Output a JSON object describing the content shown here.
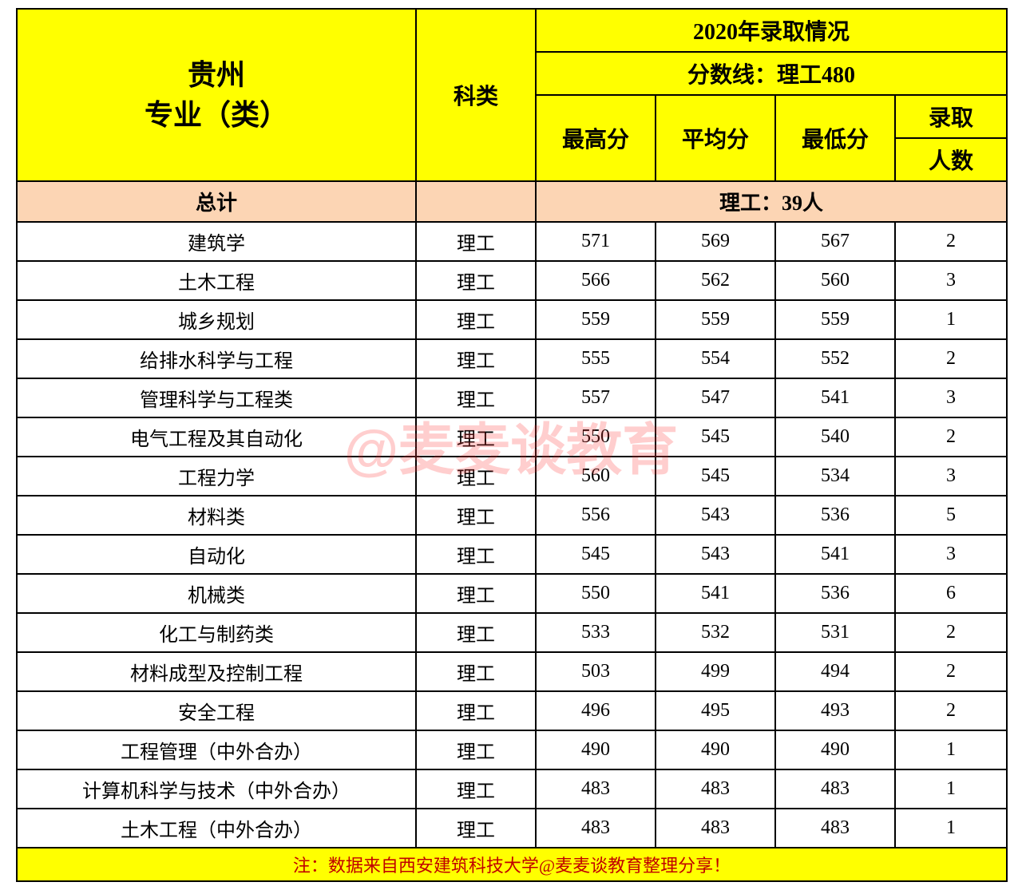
{
  "header": {
    "province_major": "贵州\n专业（类）",
    "category": "科类",
    "year_title": "2020年录取情况",
    "score_line": "分数线：理工480",
    "max": "最高分",
    "avg": "平均分",
    "min": "最低分",
    "count_top": "录取",
    "count_bot": "人数"
  },
  "total": {
    "label": "总计",
    "summary": "理工：39人"
  },
  "rows": [
    {
      "major": "建筑学",
      "cat": "理工",
      "max": "571",
      "avg": "569",
      "min": "567",
      "n": "2"
    },
    {
      "major": "土木工程",
      "cat": "理工",
      "max": "566",
      "avg": "562",
      "min": "560",
      "n": "3"
    },
    {
      "major": "城乡规划",
      "cat": "理工",
      "max": "559",
      "avg": "559",
      "min": "559",
      "n": "1"
    },
    {
      "major": "给排水科学与工程",
      "cat": "理工",
      "max": "555",
      "avg": "554",
      "min": "552",
      "n": "2"
    },
    {
      "major": "管理科学与工程类",
      "cat": "理工",
      "max": "557",
      "avg": "547",
      "min": "541",
      "n": "3"
    },
    {
      "major": "电气工程及其自动化",
      "cat": "理工",
      "max": "550",
      "avg": "545",
      "min": "540",
      "n": "2"
    },
    {
      "major": "工程力学",
      "cat": "理工",
      "max": "560",
      "avg": "545",
      "min": "534",
      "n": "3"
    },
    {
      "major": "材料类",
      "cat": "理工",
      "max": "556",
      "avg": "543",
      "min": "536",
      "n": "5"
    },
    {
      "major": "自动化",
      "cat": "理工",
      "max": "545",
      "avg": "543",
      "min": "541",
      "n": "3"
    },
    {
      "major": "机械类",
      "cat": "理工",
      "max": "550",
      "avg": "541",
      "min": "536",
      "n": "6"
    },
    {
      "major": "化工与制药类",
      "cat": "理工",
      "max": "533",
      "avg": "532",
      "min": "531",
      "n": "2"
    },
    {
      "major": "材料成型及控制工程",
      "cat": "理工",
      "max": "503",
      "avg": "499",
      "min": "494",
      "n": "2"
    },
    {
      "major": "安全工程",
      "cat": "理工",
      "max": "496",
      "avg": "495",
      "min": "493",
      "n": "2"
    },
    {
      "major": "工程管理（中外合办）",
      "cat": "理工",
      "max": "490",
      "avg": "490",
      "min": "490",
      "n": "1"
    },
    {
      "major": "计算机科学与技术（中外合办）",
      "cat": "理工",
      "max": "483",
      "avg": "483",
      "min": "483",
      "n": "1"
    },
    {
      "major": "土木工程（中外合办）",
      "cat": "理工",
      "max": "483",
      "avg": "483",
      "min": "483",
      "n": "1"
    }
  ],
  "footer": "注：数据来自西安建筑科技大学@麦麦谈教育整理分享！",
  "watermark": "@麦麦谈教育",
  "style": {
    "header_bg": "#ffff00",
    "total_bg": "#fcd5b4",
    "footer_bg": "#ffff00",
    "footer_color": "#c00000",
    "border_color": "#000000",
    "watermark_color": "rgba(255,60,60,0.25)",
    "font_family": "SimSun"
  }
}
